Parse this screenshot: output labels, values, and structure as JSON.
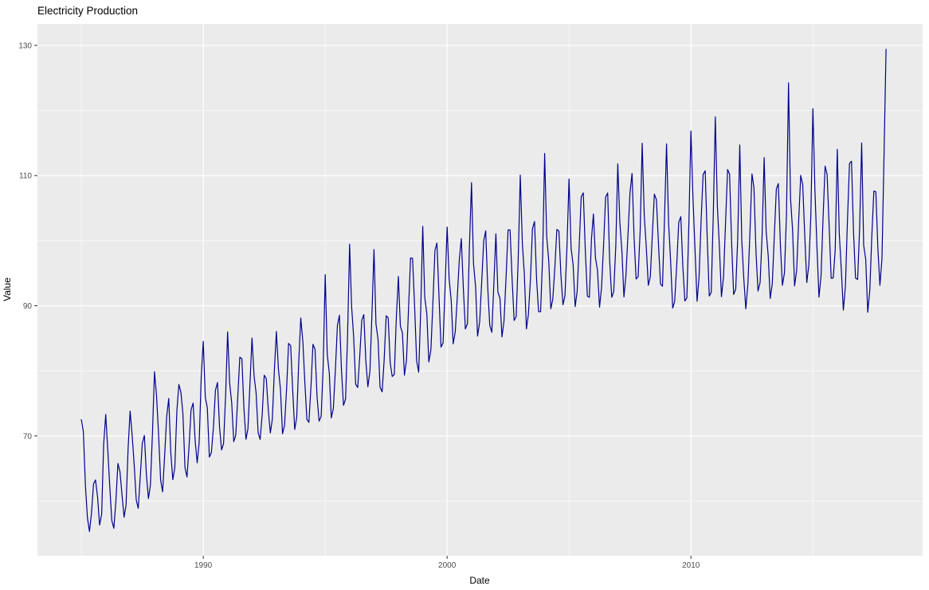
{
  "chart_data": {
    "type": "line",
    "title": "Electricity Production",
    "xlabel": "Date",
    "ylabel": "Value",
    "legend": "none",
    "grid": "major and minor white gridlines on gray panel",
    "frequency": "monthly",
    "x_start_year": 1985,
    "x_start_month": 1,
    "x_end_year": 2018,
    "x_end_month": 1,
    "xlim": [
      1983.2,
      2019.5
    ],
    "ylim": [
      51.6,
      133.3
    ],
    "x_tick_values": [
      1990,
      2000,
      2010
    ],
    "x_tick_labels": [
      "1990",
      "2000",
      "2010"
    ],
    "x_minor_tick_values": [
      1985,
      1995,
      2005,
      2015
    ],
    "y_tick_values": [
      70,
      90,
      110,
      130
    ],
    "y_tick_labels": [
      "70",
      "90",
      "110",
      "130"
    ],
    "y_minor_tick_values": [
      60,
      80,
      100,
      120
    ],
    "colors": {
      "line": "#00008B",
      "panel_background": "#EBEBEB",
      "grid_major": "#FFFFFF",
      "grid_minor": "#FFFFFF",
      "tick_label": "#4D4D4D",
      "tick_mark": "#333333",
      "title": "#000000",
      "page_background": "#FFFFFF"
    },
    "series": [
      {
        "name": "Value",
        "values": [
          72.51,
          70.67,
          62.45,
          57.47,
          55.32,
          58.09,
          62.62,
          63.25,
          60.58,
          56.32,
          58.0,
          68.71,
          73.31,
          67.99,
          62.22,
          57.03,
          55.81,
          59.9,
          65.77,
          64.48,
          61.0,
          57.53,
          59.34,
          68.14,
          73.82,
          70.06,
          65.61,
          60.16,
          58.87,
          63.89,
          68.87,
          70.07,
          64.12,
          60.38,
          62.46,
          70.58,
          79.87,
          76.16,
          70.29,
          63.24,
          61.41,
          67.11,
          72.98,
          75.77,
          67.52,
          63.28,
          65.11,
          73.86,
          77.92,
          76.68,
          73.35,
          65.11,
          63.69,
          68.47,
          74.03,
          75.04,
          69.31,
          65.87,
          69.07,
          79.2,
          84.52,
          75.9,
          74.34,
          66.75,
          67.43,
          71.35,
          77.03,
          78.21,
          71.45,
          67.86,
          68.83,
          76.28,
          85.99,
          77.98,
          75.12,
          69.11,
          70.12,
          76.18,
          82.1,
          81.86,
          74.39,
          69.48,
          71.11,
          78.18,
          85.04,
          79.23,
          76.66,
          70.53,
          69.46,
          73.28,
          79.33,
          78.8,
          74.08,
          70.46,
          72.56,
          80.15,
          86.05,
          80.23,
          77.21,
          70.34,
          71.59,
          77.23,
          84.22,
          83.88,
          77.17,
          70.99,
          72.83,
          81.47,
          88.12,
          84.55,
          78.27,
          72.53,
          72.09,
          77.62,
          84.08,
          83.32,
          76.09,
          72.27,
          73.01,
          80.64,
          94.78,
          82.59,
          79.66,
          72.77,
          74.25,
          80.06,
          86.98,
          88.54,
          80.1,
          74.7,
          75.66,
          85.22,
          99.47,
          89.91,
          85.16,
          77.95,
          77.44,
          82.21,
          87.81,
          88.64,
          81.48,
          77.55,
          79.92,
          88.57,
          98.64,
          87.17,
          84.84,
          77.47,
          76.77,
          81.54,
          88.47,
          88.14,
          81.17,
          79.14,
          79.44,
          88.04,
          94.51,
          86.91,
          85.81,
          79.33,
          81.63,
          89.41,
          97.35,
          97.28,
          89.9,
          81.57,
          79.78,
          89.15,
          102.21,
          91.29,
          88.82,
          81.36,
          83.18,
          90.27,
          98.5,
          99.64,
          91.43,
          83.66,
          84.28,
          92.76,
          102.1,
          94.14,
          90.85,
          84.14,
          86.0,
          91.24,
          97.11,
          100.31,
          92.53,
          86.42,
          87.26,
          99.19,
          108.9,
          96.5,
          92.97,
          85.35,
          87.47,
          93.46,
          99.98,
          101.52,
          92.68,
          87.01,
          85.92,
          93.24,
          101.06,
          92.13,
          91.15,
          85.2,
          87.68,
          94.23,
          101.66,
          101.64,
          94.01,
          87.74,
          88.36,
          97.15,
          110.08,
          99.63,
          94.86,
          86.45,
          88.67,
          94.16,
          101.82,
          102.95,
          94.29,
          89.09,
          89.09,
          97.68,
          113.4,
          100.6,
          96.99,
          89.53,
          90.99,
          95.86,
          101.71,
          101.47,
          94.74,
          90.15,
          91.55,
          99.39,
          109.47,
          98.81,
          96.35,
          89.86,
          92.22,
          99.32,
          106.74,
          107.34,
          98.63,
          91.47,
          91.3,
          100.17,
          104.1,
          97.32,
          95.47,
          89.78,
          92.79,
          99.43,
          106.7,
          107.33,
          96.96,
          91.3,
          92.19,
          99.21,
          111.8,
          102.77,
          98.58,
          91.35,
          94.66,
          100.97,
          107.34,
          110.33,
          100.6,
          94.1,
          94.47,
          101.58,
          114.98,
          103.93,
          99.12,
          93.15,
          94.45,
          101.02,
          107.15,
          106.29,
          99.67,
          93.36,
          93.0,
          103.7,
          114.87,
          102.65,
          96.88,
          89.65,
          90.67,
          96.35,
          102.83,
          103.7,
          96.12,
          90.73,
          91.21,
          102.99,
          116.84,
          106.42,
          98.67,
          90.69,
          94.39,
          103.19,
          110.18,
          110.74,
          100.57,
          91.49,
          92.06,
          104.27,
          119.02,
          105.26,
          99.16,
          91.39,
          94.42,
          102.63,
          110.93,
          110.22,
          99.61,
          91.73,
          92.53,
          100.29,
          114.69,
          100.12,
          94.07,
          89.52,
          93.35,
          101.01,
          110.26,
          108.16,
          98.13,
          92.27,
          93.56,
          100.68,
          112.77,
          101.47,
          97.69,
          91.13,
          93.36,
          100.6,
          107.93,
          108.78,
          99.31,
          93.14,
          95.08,
          103.91,
          124.25,
          106.49,
          101.6,
          93.05,
          95.46,
          102.99,
          110.03,
          108.61,
          100.66,
          93.57,
          96.28,
          103.83,
          120.27,
          107.82,
          98.93,
          91.31,
          94.61,
          103.36,
          111.45,
          110.18,
          102.19,
          94.23,
          94.27,
          98.62,
          114.03,
          101.04,
          95.42,
          89.33,
          93.0,
          102.91,
          111.85,
          112.21,
          101.23,
          94.26,
          94.04,
          101.83,
          115.03,
          99.32,
          97.12,
          89.0,
          92.36,
          100.63,
          107.63,
          107.52,
          98.64,
          93.13,
          97.3,
          112.77,
          129.4
        ]
      }
    ]
  }
}
